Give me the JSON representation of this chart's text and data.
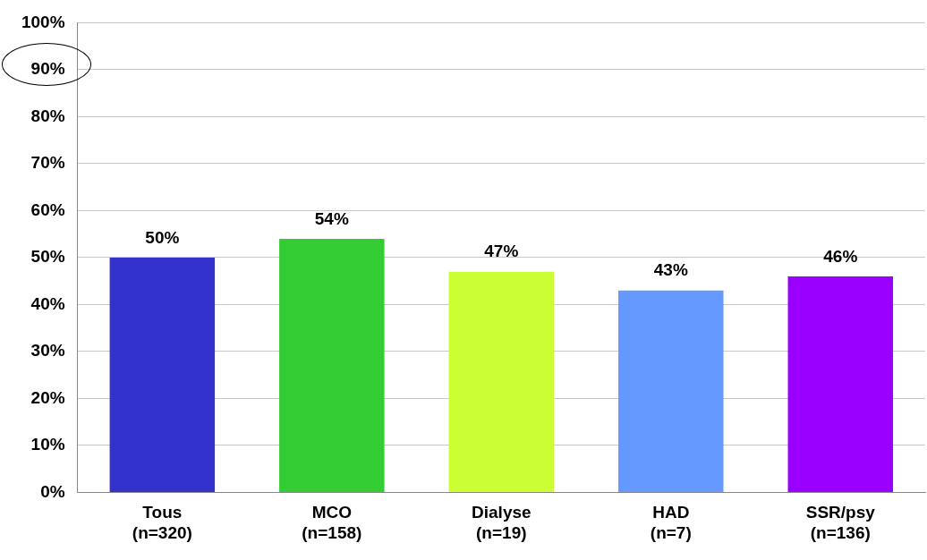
{
  "chart_data": {
    "type": "bar",
    "categories": [
      "Tous\n(n=320)",
      "MCO\n(n=158)",
      "Dialyse\n(n=19)",
      "HAD\n(n=7)",
      "SSR/psy\n(n=136)"
    ],
    "values": [
      50,
      54,
      47,
      43,
      46
    ],
    "colors": [
      "#3333cc",
      "#33cc33",
      "#ccff33",
      "#6699ff",
      "#9900ff"
    ],
    "ylim": [
      0,
      100
    ],
    "yticks": [
      {
        "value": 0,
        "label": "0%"
      },
      {
        "value": 10,
        "label": "10%"
      },
      {
        "value": 20,
        "label": "20%"
      },
      {
        "value": 30,
        "label": "30%"
      },
      {
        "value": 40,
        "label": "40%"
      },
      {
        "value": 50,
        "label": "50%"
      },
      {
        "value": 60,
        "label": "60%"
      },
      {
        "value": 70,
        "label": "70%"
      },
      {
        "value": 80,
        "label": "80%"
      },
      {
        "value": 90,
        "label": "90%"
      },
      {
        "value": 100,
        "label": "100%"
      }
    ],
    "value_labels": [
      "50%",
      "54%",
      "47%",
      "43%",
      "46%"
    ],
    "grid": "y",
    "legend": false
  }
}
